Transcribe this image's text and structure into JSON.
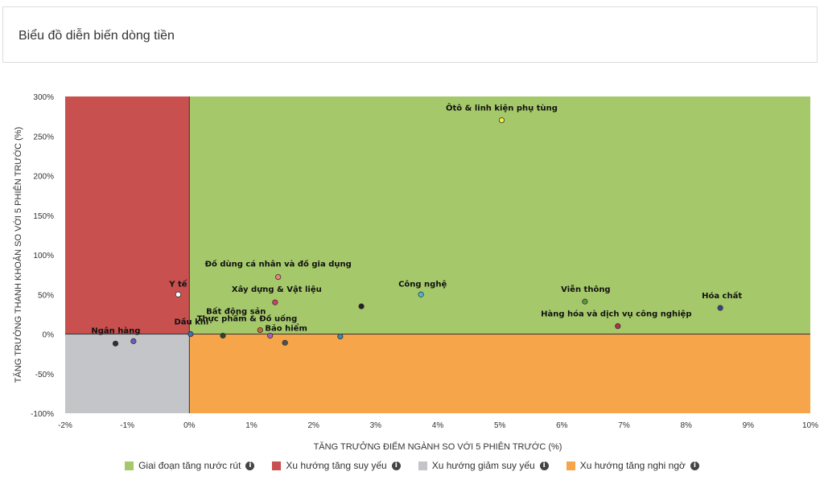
{
  "header": {
    "title": "Biểu đồ diễn biến dòng tiền"
  },
  "legend": [
    {
      "label": "Giai đoạn tăng nước rút",
      "color": "#a5c96a"
    },
    {
      "label": "Xu hướng tăng suy yếu",
      "color": "#c8504e"
    },
    {
      "label": "Xu hướng giảm suy yếu",
      "color": "#c4c5c9"
    },
    {
      "label": "Xu hướng tăng nghi ngờ",
      "color": "#f7a54b"
    }
  ],
  "info_icon": "info-icon",
  "chart_data": {
    "type": "scatter",
    "xlabel": "TĂNG TRƯỞNG ĐIỂM NGÀNH SO VỚI 5 PHIÊN TRƯỚC (%)",
    "ylabel": "TĂNG TRƯỞNG THANH KHOẢN SO VỚI 5 PHIÊN TRƯỚC (%)",
    "xlim": [
      -2,
      10
    ],
    "ylim": [
      -100,
      300
    ],
    "x_ticks": [
      "-2%",
      "-1%",
      "0%",
      "1%",
      "2%",
      "3%",
      "4%",
      "5%",
      "6%",
      "7%",
      "8%",
      "9%",
      "10%"
    ],
    "y_ticks": [
      "300%",
      "250%",
      "200%",
      "150%",
      "100%",
      "50%",
      "0%",
      "-50%",
      "-100%"
    ],
    "quadrant_colors": {
      "top_right": "#a5c96a",
      "top_left": "#c8504e",
      "bottom_left": "#c4c5c9",
      "bottom_right": "#f7a54b"
    },
    "points": [
      {
        "name": "Ôtô & linh kiện phụ tùng",
        "x": 5.03,
        "y": 270,
        "color": "#f4ee3a"
      },
      {
        "name": "Đồ dùng cá nhân và đồ gia dụng",
        "x": 1.43,
        "y": 72,
        "color": "#f08080"
      },
      {
        "name": "Y tế",
        "x": -0.18,
        "y": 50,
        "color": "#ffffff"
      },
      {
        "name": "Xây dựng & Vật liệu",
        "x": 1.38,
        "y": 40,
        "color": "#d83c6a"
      },
      {
        "name": "Công nghệ",
        "x": 3.73,
        "y": 50,
        "color": "#4fb8d6"
      },
      {
        "name": "Viễn thông",
        "x": 6.37,
        "y": 41,
        "color": "#5a9a3a"
      },
      {
        "name": "Hóa chất",
        "x": 8.55,
        "y": 33,
        "color": "#3f3f8f"
      },
      {
        "name": "Hàng hóa và dịch vụ công nghiệp",
        "x": 6.9,
        "y": 10,
        "color": "#b03050"
      },
      {
        "name": "Bất động sản",
        "x": 1.14,
        "y": 5,
        "color": "#c86a30"
      },
      {
        "name": "",
        "x": 2.77,
        "y": 35,
        "color": "#222222"
      },
      {
        "name": "Dầu khí",
        "x": 0.02,
        "y": 0,
        "color": "#3a6fb0"
      },
      {
        "name": "Thực phẩm & Đồ uống",
        "x": 0.54,
        "y": -2,
        "color": "#2a4a2a"
      },
      {
        "name": "Bảo hiểm",
        "x": 1.3,
        "y": -2,
        "color": "#a060c0"
      },
      {
        "name": "",
        "x": 1.54,
        "y": -11,
        "color": "#505050"
      },
      {
        "name": "",
        "x": 2.43,
        "y": -3,
        "color": "#3a8ab0"
      },
      {
        "name": "Ngân hàng",
        "x": -0.9,
        "y": -9,
        "color": "#6060c0"
      },
      {
        "name": "",
        "x": -1.19,
        "y": -12,
        "color": "#303030"
      }
    ]
  }
}
